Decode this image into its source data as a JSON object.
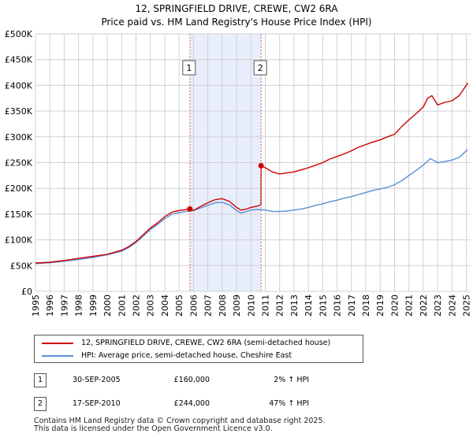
{
  "title_line1": "12, SPRINGFIELD DRIVE, CREWE, CW2 6RA",
  "title_line2": "Price paid vs. HM Land Registry's House Price Index (HPI)",
  "chart_data": {
    "type": "line",
    "xlim": [
      1995.0,
      2025.3
    ],
    "ylim": [
      0,
      500000
    ],
    "y_ticks": [
      0,
      50000,
      100000,
      150000,
      200000,
      250000,
      300000,
      350000,
      400000,
      450000,
      500000
    ],
    "y_tick_labels": [
      "£0",
      "£50K",
      "£100K",
      "£150K",
      "£200K",
      "£250K",
      "£300K",
      "£350K",
      "£400K",
      "£450K",
      "£500K"
    ],
    "x_ticks": [
      1995,
      1996,
      1997,
      1998,
      1999,
      2000,
      2001,
      2002,
      2003,
      2004,
      2005,
      2006,
      2007,
      2008,
      2009,
      2010,
      2011,
      2012,
      2013,
      2014,
      2015,
      2016,
      2017,
      2018,
      2019,
      2020,
      2021,
      2022,
      2023,
      2024,
      2025
    ],
    "x_tick_labels": [
      "1995",
      "1996",
      "1997",
      "1998",
      "1999",
      "2000",
      "2001",
      "2002",
      "2003",
      "2004",
      "2005",
      "2006",
      "2007",
      "2008",
      "2009",
      "2010",
      "2011",
      "2012",
      "2013",
      "2014",
      "2015",
      "2016",
      "2017",
      "2018",
      "2019",
      "2020",
      "2021",
      "2022",
      "2023",
      "2024",
      "2025"
    ],
    "grid": true,
    "shaded_span": [
      2005.75,
      2010.71
    ],
    "series": [
      {
        "name": "12, SPRINGFIELD DRIVE, CREWE, CW2 6RA (semi-detached house)",
        "color": "#cc0000",
        "x": [
          1995,
          1996,
          1997,
          1998,
          1999,
          2000,
          2001,
          2001.5,
          2002,
          2002.5,
          2003,
          2003.5,
          2004,
          2004.5,
          2005,
          2005.5,
          2005.75,
          2006,
          2006.5,
          2007,
          2007.5,
          2008,
          2008.5,
          2009,
          2009.3,
          2009.7,
          2010,
          2010.5,
          2010.7,
          2010.71,
          2011,
          2011.5,
          2012,
          2012.5,
          2013,
          2013.5,
          2014,
          2014.5,
          2015,
          2015.5,
          2016,
          2016.5,
          2017,
          2017.5,
          2018,
          2018.5,
          2019,
          2019.5,
          2020,
          2020.5,
          2021,
          2021.5,
          2022,
          2022.3,
          2022.6,
          2023,
          2023.5,
          2024,
          2024.5,
          2024.8,
          2025.1
        ],
        "y": [
          55000,
          56500,
          60000,
          64000,
          68000,
          72000,
          80000,
          87000,
          97000,
          110000,
          123000,
          133000,
          145000,
          154000,
          157000,
          159000,
          160000,
          157000,
          165000,
          172000,
          178000,
          180000,
          175000,
          163000,
          158000,
          160000,
          163000,
          166000,
          168000,
          244000,
          240000,
          232000,
          228000,
          230000,
          232000,
          236000,
          240000,
          245000,
          250000,
          257000,
          262000,
          267000,
          273000,
          280000,
          285000,
          290000,
          294000,
          300000,
          305000,
          320000,
          333000,
          345000,
          358000,
          375000,
          380000,
          362000,
          367000,
          370000,
          380000,
          392000,
          405000
        ]
      },
      {
        "name": "HPI: Average price, semi-detached house, Cheshire East",
        "color": "#5b8ed6",
        "x": [
          1995,
          1996,
          1997,
          1998,
          1999,
          2000,
          2001,
          2001.5,
          2002,
          2002.5,
          2003,
          2003.5,
          2004,
          2004.5,
          2005,
          2005.5,
          2006,
          2006.5,
          2007,
          2007.5,
          2008,
          2008.5,
          2009,
          2009.3,
          2009.7,
          2010,
          2010.5,
          2011,
          2011.5,
          2012,
          2012.5,
          2013,
          2013.5,
          2014,
          2014.5,
          2015,
          2015.5,
          2016,
          2016.5,
          2017,
          2017.5,
          2018,
          2018.5,
          2019,
          2019.5,
          2020,
          2020.5,
          2021,
          2021.5,
          2022,
          2022.5,
          2023,
          2023.5,
          2024,
          2024.5,
          2024.8,
          2025.1
        ],
        "y": [
          54000,
          55500,
          58500,
          62000,
          66000,
          71000,
          78000,
          85000,
          95000,
          107000,
          120000,
          130000,
          141000,
          150000,
          153000,
          155000,
          157000,
          162000,
          167000,
          172000,
          173000,
          168000,
          157000,
          152000,
          155000,
          158000,
          159000,
          158000,
          155000,
          155000,
          156000,
          158000,
          160000,
          163000,
          167000,
          170000,
          174000,
          177000,
          181000,
          184000,
          188000,
          192000,
          196000,
          199000,
          202000,
          207000,
          215000,
          225000,
          235000,
          245000,
          258000,
          250000,
          252000,
          255000,
          260000,
          268000,
          275000
        ]
      }
    ],
    "annotations": [
      {
        "label": "1",
        "x": 2005.75,
        "value": 160000
      },
      {
        "label": "2",
        "x": 2010.71,
        "value": 244000
      }
    ]
  },
  "legend": {
    "property_label": "12, SPRINGFIELD DRIVE, CREWE, CW2 6RA (semi-detached house)",
    "hpi_label": "HPI: Average price, semi-detached house, Cheshire East",
    "property_color": "#cc0000",
    "hpi_color": "#5b8ed6"
  },
  "sales": [
    {
      "badge": "1",
      "date": "30-SEP-2005",
      "price": "£160,000",
      "hpi": "2% ↑ HPI"
    },
    {
      "badge": "2",
      "date": "17-SEP-2010",
      "price": "£244,000",
      "hpi": "47% ↑ HPI"
    }
  ],
  "footer_line1": "Contains HM Land Registry data © Crown copyright and database right 2025.",
  "footer_line2": "This data is licensed under the Open Government Licence v3.0."
}
